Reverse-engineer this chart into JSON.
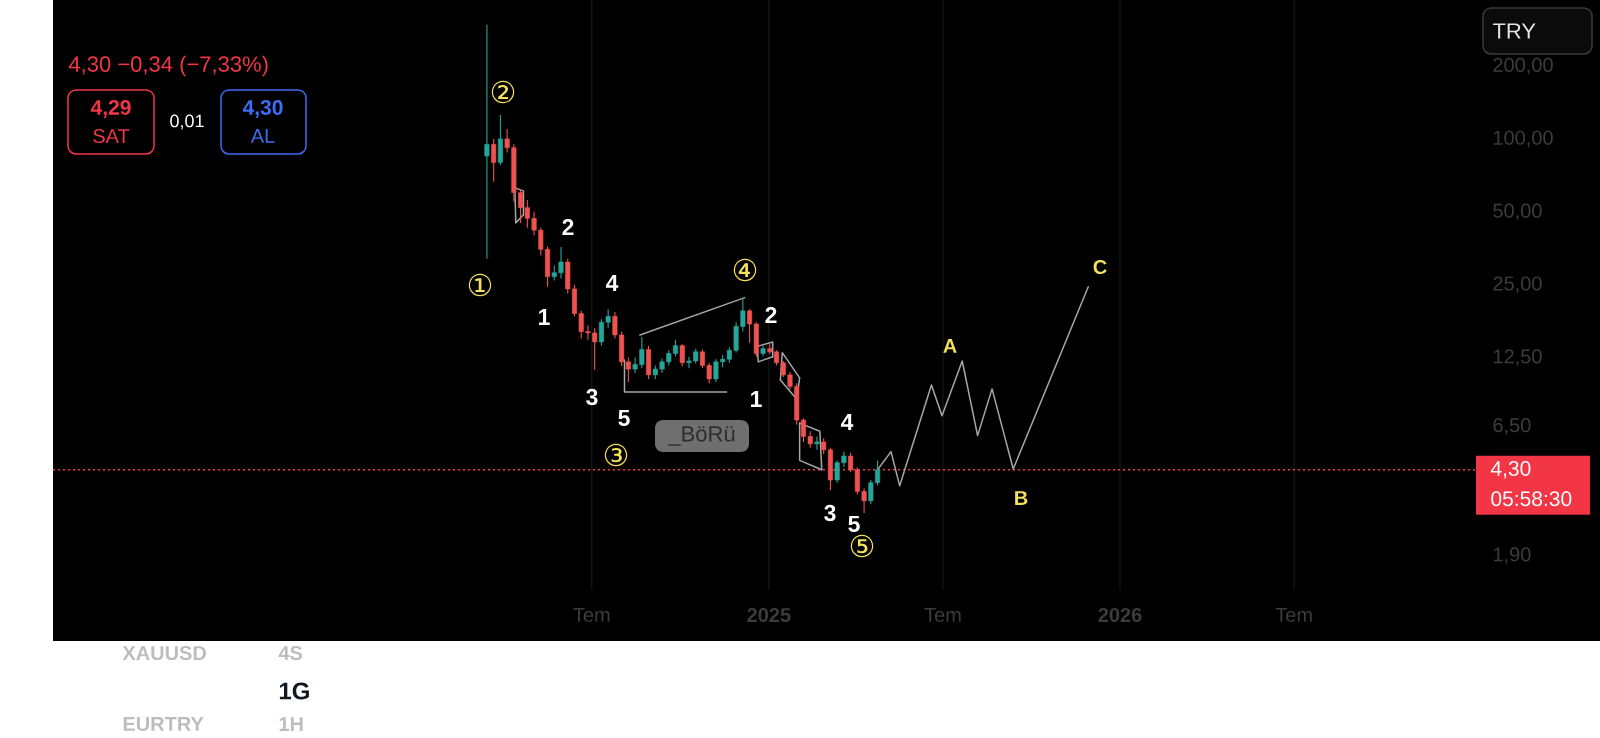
{
  "chart_data": {
    "type": "candlestick",
    "series": [
      {
        "type": "line",
        "color": "#a6a6a6",
        "x": [
          "2025-04-24",
          "2025-05-08",
          "2025-05-17",
          "2025-06-19",
          "2025-06-30",
          "2025-07-21",
          "2025-08-06",
          "2025-08-21",
          "2025-09-12",
          "2025-11-29"
        ],
        "values": [
          4.3,
          5.11,
          3.69,
          9.62,
          7.18,
          12.1,
          5.95,
          9.28,
          4.33,
          24.5
        ]
      },
      {
        "type": "line",
        "color": "#a6a6a6",
        "x": [
          "2024-08-04",
          "2024-08-04",
          "2024-11-18"
        ],
        "values": [
          12.2,
          9.0,
          9.0
        ]
      },
      {
        "type": "line",
        "color": "#a6a6a6",
        "x": [
          "2024-08-20",
          "2024-12-07"
        ],
        "values": [
          15.5,
          22.1
        ]
      },
      {
        "type": "line",
        "color": "#a6a6a6",
        "x": [
          "2024-04-12",
          "2024-04-21",
          "2024-04-21"
        ],
        "values": [
          62.8,
          61,
          48.6
        ]
      },
      {
        "type": "line",
        "color": "#a6a6a6",
        "x": [
          "2024-04-12",
          "2024-04-13",
          "2024-04-21"
        ],
        "values": [
          62.8,
          45,
          48.6
        ]
      },
      {
        "type": "line",
        "color": "#a6a6a6",
        "x": [
          "2024-12-20",
          "2025-01-05",
          "2025-01-05"
        ],
        "values": [
          13.9,
          14.5,
          12.6
        ]
      },
      {
        "type": "line",
        "color": "#a6a6a6",
        "x": [
          "2024-12-20",
          "2024-12-21",
          "2025-01-05"
        ],
        "values": [
          13.9,
          12.0,
          12.6
        ]
      },
      {
        "type": "line",
        "color": "#a6a6a6",
        "x": [
          "2025-01-13",
          "2025-01-15",
          "2025-02-02"
        ],
        "values": [
          10.1,
          13.1,
          10.3
        ]
      },
      {
        "type": "line",
        "color": "#a6a6a6",
        "x": [
          "2025-01-13",
          "2025-01-30",
          "2025-02-02"
        ],
        "values": [
          10.1,
          8.4,
          10.3
        ]
      },
      {
        "type": "line",
        "color": "#a6a6a6",
        "x": [
          "2025-02-02",
          "2025-02-23",
          "2025-02-25"
        ],
        "values": [
          6.7,
          6.2,
          4.3
        ]
      },
      {
        "type": "line",
        "color": "#a6a6a6",
        "x": [
          "2025-02-02",
          "2025-02-02",
          "2025-02-25"
        ],
        "values": [
          6.7,
          4.7,
          4.3
        ]
      },
      {
        "x": [
          "2024-03-14",
          "2024-03-21",
          "2024-03-28",
          "2024-04-04",
          "2024-04-11",
          "2024-04-18",
          "2024-04-25",
          "2024-05-02",
          "2024-05-09",
          "2024-05-16",
          "2024-05-23",
          "2024-05-30",
          "2024-06-06",
          "2024-06-13",
          "2024-06-20",
          "2024-06-27",
          "2024-07-04",
          "2024-07-11",
          "2024-07-18",
          "2024-07-25",
          "2024-08-01",
          "2024-08-08",
          "2024-08-15",
          "2024-08-22",
          "2024-08-29",
          "2024-09-05",
          "2024-09-12",
          "2024-09-19",
          "2024-09-26",
          "2024-10-03",
          "2024-10-10",
          "2024-10-17",
          "2024-10-24",
          "2024-10-31",
          "2024-11-07",
          "2024-11-14",
          "2024-11-21",
          "2024-11-28",
          "2024-12-05",
          "2024-12-12",
          "2024-12-19",
          "2024-12-26",
          "2025-01-02",
          "2025-01-09",
          "2025-01-16",
          "2025-01-23",
          "2025-01-30",
          "2025-02-06",
          "2025-02-13",
          "2025-02-20",
          "2025-02-27",
          "2025-03-06",
          "2025-03-13",
          "2025-03-20",
          "2025-03-27",
          "2025-04-03",
          "2025-04-10",
          "2025-04-17",
          "2025-04-24"
        ],
        "ohlc": [
          [
            85,
            296,
            32,
            95
          ],
          [
            95,
            100,
            66.5,
            80
          ],
          [
            80,
            125.6,
            78,
            100
          ],
          [
            100,
            110,
            88,
            92
          ],
          [
            92,
            95,
            55,
            60
          ],
          [
            60,
            62,
            45,
            52
          ],
          [
            52,
            56,
            43,
            47
          ],
          [
            47,
            50,
            40,
            42
          ],
          [
            42,
            43,
            33,
            35
          ],
          [
            35,
            36,
            24.5,
            27
          ],
          [
            27,
            30,
            26,
            28
          ],
          [
            28,
            35.8,
            26.5,
            31
          ],
          [
            31,
            32,
            23,
            24
          ],
          [
            24,
            25,
            18.5,
            19
          ],
          [
            19,
            19.5,
            15,
            16
          ],
          [
            16,
            17,
            14.8,
            15.8
          ],
          [
            15.8,
            16.5,
            11.1,
            14.5
          ],
          [
            14.5,
            18,
            14,
            17.5
          ],
          [
            17.5,
            19.8,
            16.5,
            18.5
          ],
          [
            18.5,
            19.3,
            15,
            15.5
          ],
          [
            15.5,
            16,
            11.5,
            12
          ],
          [
            12,
            12.5,
            9.9,
            11.2
          ],
          [
            11.2,
            12.5,
            10.8,
            11.7
          ],
          [
            11.7,
            15.2,
            11.3,
            13.5
          ],
          [
            13.5,
            14,
            10.2,
            10.6
          ],
          [
            10.6,
            11.6,
            10.2,
            11.2
          ],
          [
            11.2,
            12.4,
            10.8,
            12
          ],
          [
            12,
            13.4,
            11.6,
            13
          ],
          [
            13,
            14.8,
            12.6,
            14
          ],
          [
            14,
            14.2,
            11.5,
            11.9
          ],
          [
            11.9,
            12.6,
            11.3,
            12.1
          ],
          [
            12.1,
            13.6,
            11.8,
            13.2
          ],
          [
            13.2,
            13.5,
            11.3,
            11.6
          ],
          [
            11.6,
            11.9,
            9.8,
            10.2
          ],
          [
            10.2,
            12.3,
            9.9,
            12
          ],
          [
            12,
            12.8,
            11.4,
            12.3
          ],
          [
            12.3,
            13.8,
            11.9,
            13.4
          ],
          [
            13.4,
            17.5,
            13.1,
            16.8
          ],
          [
            16.8,
            22.1,
            16,
            19.5
          ],
          [
            19.5,
            19.8,
            14.4,
            17.2
          ],
          [
            17.2,
            17.5,
            12.6,
            13
          ],
          [
            13,
            14,
            12.7,
            13.6
          ],
          [
            13.6,
            14.2,
            12.9,
            13.2
          ],
          [
            13.2,
            13.4,
            11.6,
            11.9
          ],
          [
            11.9,
            12.1,
            10.4,
            10.6
          ],
          [
            10.6,
            10.9,
            9.2,
            9.5
          ],
          [
            9.5,
            9.8,
            6.6,
            6.9
          ],
          [
            6.9,
            7,
            5.6,
            5.9
          ],
          [
            5.9,
            6.2,
            5.3,
            5.5
          ],
          [
            5.5,
            5.9,
            5.2,
            5.6
          ],
          [
            5.6,
            5.8,
            5,
            5.2
          ],
          [
            5.2,
            5.3,
            3.55,
            3.9
          ],
          [
            3.9,
            4.7,
            3.8,
            4.6
          ],
          [
            4.6,
            5.1,
            4.4,
            4.9
          ],
          [
            4.9,
            5.05,
            4.2,
            4.3
          ],
          [
            4.3,
            4.4,
            3.4,
            3.5
          ],
          [
            3.5,
            3.6,
            2.85,
            3.2
          ],
          [
            3.2,
            3.9,
            3.1,
            3.8
          ],
          [
            3.8,
            4.7,
            3.7,
            4.3
          ]
        ],
        "colors": [
          "#26a69a",
          "#ef5350",
          "#26a69a",
          "#ef5350",
          "#ef5350",
          "#ef5350",
          "#ef5350",
          "#ef5350",
          "#ef5350",
          "#ef5350",
          "#26a69a",
          "#26a69a",
          "#ef5350",
          "#ef5350",
          "#ef5350",
          "#ef5350",
          "#ef5350",
          "#26a69a",
          "#26a69a",
          "#ef5350",
          "#ef5350",
          "#ef5350",
          "#26a69a",
          "#26a69a",
          "#ef5350",
          "#26a69a",
          "#26a69a",
          "#26a69a",
          "#26a69a",
          "#ef5350",
          "#26a69a",
          "#26a69a",
          "#ef5350",
          "#ef5350",
          "#26a69a",
          "#26a69a",
          "#26a69a",
          "#26a69a",
          "#26a69a",
          "#ef5350",
          "#ef5350",
          "#26a69a",
          "#ef5350",
          "#ef5350",
          "#ef5350",
          "#ef5350",
          "#ef5350",
          "#ef5350",
          "#ef5350",
          "#26a69a",
          "#ef5350",
          "#ef5350",
          "#26a69a",
          "#26a69a",
          "#ef5350",
          "#ef5350",
          "#ef5350",
          "#26a69a",
          "#26a69a"
        ]
      }
    ],
    "xlim": [
      "2022-12-19",
      "2027-01-06"
    ],
    "ylim": [
      1.37,
      375
    ],
    "xticks": [
      {
        "value": "2024-07-01",
        "label": "Tem"
      },
      {
        "value": "2025-01-01",
        "label": "2025"
      },
      {
        "value": "2025-07-01",
        "label": "Tem"
      },
      {
        "value": "2026-01-01",
        "label": "2026"
      },
      {
        "value": "2026-07-01",
        "label": "Tem"
      }
    ],
    "yticks": [
      {
        "value": 1.9,
        "label": "1,90"
      },
      {
        "value": 6.5,
        "label": "6,50"
      },
      {
        "value": 12.5,
        "label": "12,50"
      },
      {
        "value": 25,
        "label": "25,00"
      },
      {
        "value": 50,
        "label": "50,00"
      },
      {
        "value": 100,
        "label": "100,00"
      },
      {
        "value": 200,
        "label": "200,00"
      }
    ],
    "log": "y",
    "grid": "x",
    "ref_lines": [
      {
        "axis": "y",
        "value": 4.3,
        "label": "4,30",
        "color": "#f23645",
        "line_style": "dotted"
      }
    ],
    "annotations": [
      "4,30 −0,34 (−7,33%)",
      "4,29",
      "SAT",
      "0,01",
      "4,30",
      "AL",
      "TRY",
      "_BöRü",
      "05:58:30",
      "XAUUSD",
      "4S",
      "1G",
      "EURTRY",
      "1H",
      "①",
      "②",
      "③",
      "④",
      "⑤",
      "1",
      "2",
      "3",
      "4",
      "5",
      "1",
      "2",
      "3",
      "4",
      "5",
      "A",
      "B",
      "C"
    ]
  }
}
